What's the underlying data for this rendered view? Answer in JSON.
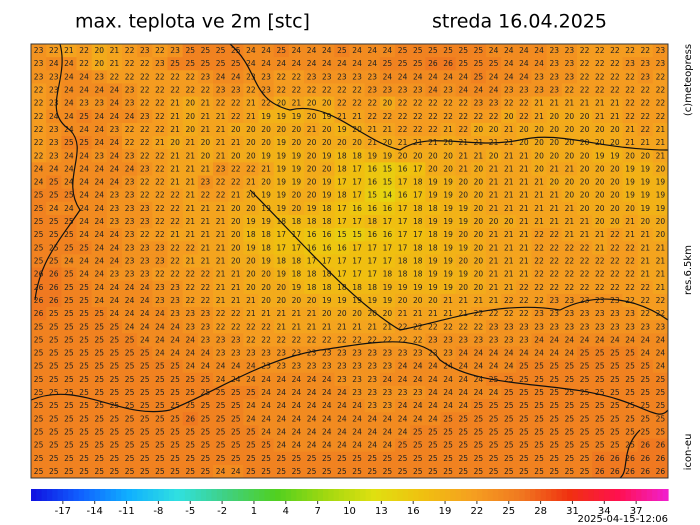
{
  "header": {
    "title": "max. teplota ve 2m [stc]",
    "date": "streda 16.04.2025"
  },
  "credits": {
    "copyright": "(c)meteopress",
    "resolution": "res.6.5km",
    "model": "icon-eu"
  },
  "timestamp": "2025-04-15-12:06",
  "colorbar": {
    "lim": [
      -20,
      40
    ],
    "ticks": [
      -17,
      -14,
      -11,
      -8,
      -5,
      -2,
      1,
      4,
      7,
      10,
      13,
      16,
      19,
      22,
      25,
      28,
      31,
      34,
      37
    ],
    "colors": [
      "#1010e0",
      "#1060ff",
      "#10b0ff",
      "#30e0e0",
      "#40d080",
      "#50d020",
      "#a0d810",
      "#e0e010",
      "#f0c010",
      "#f5a020",
      "#f07820",
      "#f03010",
      "#ff1050",
      "#f020d0"
    ]
  },
  "grid": {
    "rows": [
      [
        23,
        22,
        21,
        22,
        20,
        21,
        22,
        23,
        22,
        23,
        25,
        25,
        25,
        25,
        24,
        24,
        25,
        24,
        24,
        24,
        25,
        24,
        24,
        24,
        25,
        25,
        25,
        25,
        25,
        25,
        24,
        24,
        24,
        24,
        23,
        23,
        22,
        22,
        22,
        22,
        22,
        23
      ],
      [
        23,
        24,
        24,
        22,
        20,
        21,
        22,
        22,
        23,
        25,
        25,
        25,
        25,
        25,
        24,
        24,
        24,
        24,
        24,
        24,
        24,
        24,
        24,
        25,
        25,
        25,
        26,
        26,
        25,
        25,
        25,
        24,
        24,
        24,
        23,
        23,
        22,
        22,
        22,
        23,
        23,
        23
      ],
      [
        23,
        23,
        24,
        24,
        23,
        22,
        22,
        22,
        22,
        22,
        22,
        23,
        24,
        24,
        23,
        23,
        22,
        22,
        23,
        23,
        23,
        23,
        23,
        24,
        24,
        24,
        24,
        24,
        24,
        25,
        24,
        24,
        24,
        23,
        23,
        23,
        22,
        22,
        22,
        22,
        23,
        22
      ],
      [
        22,
        23,
        24,
        24,
        24,
        24,
        23,
        22,
        22,
        22,
        22,
        22,
        23,
        23,
        22,
        23,
        22,
        22,
        22,
        22,
        22,
        22,
        23,
        23,
        23,
        23,
        24,
        23,
        24,
        24,
        24,
        23,
        23,
        23,
        23,
        22,
        22,
        22,
        22,
        22,
        22,
        22
      ],
      [
        22,
        23,
        24,
        23,
        23,
        24,
        23,
        22,
        22,
        21,
        20,
        21,
        22,
        22,
        21,
        22,
        20,
        21,
        20,
        20,
        22,
        22,
        22,
        20,
        22,
        22,
        22,
        22,
        22,
        23,
        23,
        22,
        22,
        21,
        21,
        21,
        21,
        21,
        21,
        22,
        22,
        22
      ],
      [
        22,
        24,
        24,
        25,
        24,
        24,
        24,
        23,
        22,
        21,
        20,
        21,
        21,
        22,
        21,
        19,
        19,
        19,
        20,
        19,
        21,
        21,
        22,
        22,
        22,
        22,
        22,
        22,
        22,
        22,
        22,
        20,
        22,
        21,
        20,
        20,
        20,
        21,
        21,
        22,
        22,
        22
      ],
      [
        22,
        23,
        24,
        24,
        24,
        23,
        22,
        22,
        22,
        21,
        20,
        21,
        21,
        20,
        20,
        20,
        20,
        20,
        21,
        20,
        19,
        20,
        21,
        21,
        22,
        22,
        22,
        21,
        22,
        20,
        20,
        21,
        20,
        20,
        20,
        20,
        20,
        20,
        20,
        21,
        22,
        21
      ],
      [
        22,
        23,
        25,
        25,
        24,
        24,
        22,
        22,
        21,
        20,
        21,
        20,
        21,
        21,
        20,
        20,
        19,
        20,
        20,
        20,
        20,
        20,
        21,
        20,
        21,
        21,
        21,
        20,
        21,
        21,
        21,
        21,
        20,
        20,
        20,
        20,
        20,
        20,
        20,
        21,
        21,
        21
      ],
      [
        22,
        23,
        24,
        24,
        23,
        24,
        23,
        22,
        22,
        21,
        21,
        20,
        21,
        20,
        20,
        19,
        19,
        19,
        20,
        19,
        18,
        18,
        19,
        19,
        20,
        20,
        20,
        20,
        21,
        21,
        20,
        21,
        21,
        20,
        20,
        20,
        20,
        19,
        19,
        20,
        20,
        21
      ],
      [
        24,
        24,
        24,
        24,
        24,
        24,
        24,
        23,
        22,
        21,
        21,
        21,
        23,
        22,
        22,
        21,
        19,
        19,
        20,
        20,
        18,
        17,
        16,
        15,
        16,
        17,
        20,
        20,
        21,
        20,
        21,
        21,
        21,
        20,
        21,
        21,
        20,
        20,
        20,
        19,
        19,
        20
      ],
      [
        24,
        25,
        24,
        24,
        24,
        24,
        23,
        22,
        22,
        21,
        21,
        23,
        22,
        22,
        21,
        20,
        19,
        19,
        20,
        19,
        17,
        17,
        16,
        15,
        17,
        18,
        19,
        19,
        20,
        20,
        21,
        21,
        21,
        21,
        20,
        20,
        20,
        20,
        20,
        19,
        19,
        19
      ],
      [
        25,
        25,
        25,
        24,
        24,
        23,
        23,
        22,
        22,
        22,
        21,
        22,
        22,
        21,
        20,
        19,
        19,
        20,
        20,
        19,
        18,
        17,
        15,
        14,
        16,
        17,
        19,
        19,
        20,
        20,
        21,
        21,
        21,
        21,
        21,
        20,
        20,
        20,
        20,
        19,
        19,
        19
      ],
      [
        25,
        24,
        24,
        24,
        24,
        23,
        23,
        23,
        22,
        22,
        21,
        21,
        21,
        20,
        20,
        19,
        19,
        20,
        19,
        18,
        17,
        16,
        16,
        16,
        17,
        18,
        18,
        19,
        19,
        20,
        21,
        21,
        21,
        21,
        21,
        21,
        20,
        20,
        20,
        20,
        19,
        19
      ],
      [
        25,
        25,
        25,
        24,
        24,
        23,
        23,
        23,
        22,
        22,
        21,
        21,
        21,
        20,
        19,
        19,
        18,
        18,
        18,
        18,
        17,
        17,
        18,
        17,
        17,
        18,
        19,
        19,
        19,
        20,
        20,
        20,
        21,
        21,
        21,
        21,
        21,
        20,
        20,
        21,
        20,
        20
      ],
      [
        25,
        25,
        25,
        24,
        24,
        24,
        23,
        22,
        22,
        21,
        21,
        21,
        21,
        20,
        18,
        18,
        17,
        17,
        16,
        16,
        15,
        15,
        16,
        16,
        17,
        17,
        18,
        19,
        20,
        20,
        21,
        21,
        21,
        22,
        22,
        21,
        21,
        21,
        22,
        21,
        21,
        20
      ],
      [
        25,
        25,
        25,
        25,
        24,
        24,
        23,
        23,
        23,
        22,
        22,
        21,
        21,
        20,
        19,
        18,
        17,
        17,
        16,
        16,
        16,
        17,
        17,
        17,
        17,
        18,
        18,
        19,
        19,
        20,
        21,
        21,
        21,
        22,
        22,
        22,
        22,
        21,
        22,
        22,
        21,
        21
      ],
      [
        25,
        25,
        24,
        24,
        24,
        24,
        23,
        23,
        23,
        22,
        21,
        21,
        21,
        20,
        20,
        19,
        18,
        18,
        17,
        17,
        17,
        17,
        17,
        17,
        18,
        18,
        19,
        19,
        20,
        20,
        21,
        21,
        21,
        22,
        22,
        22,
        22,
        22,
        22,
        22,
        21,
        21
      ],
      [
        26,
        26,
        25,
        24,
        24,
        23,
        23,
        23,
        22,
        22,
        22,
        22,
        21,
        21,
        20,
        20,
        19,
        18,
        18,
        18,
        17,
        17,
        17,
        18,
        18,
        18,
        19,
        19,
        19,
        20,
        21,
        21,
        21,
        22,
        22,
        22,
        22,
        22,
        22,
        22,
        21,
        21
      ],
      [
        26,
        26,
        25,
        25,
        24,
        24,
        24,
        24,
        23,
        23,
        22,
        22,
        21,
        21,
        20,
        20,
        20,
        19,
        18,
        18,
        18,
        18,
        18,
        19,
        19,
        19,
        19,
        19,
        20,
        20,
        21,
        21,
        22,
        22,
        22,
        22,
        22,
        22,
        22,
        22,
        22,
        21
      ],
      [
        26,
        26,
        25,
        25,
        24,
        24,
        24,
        24,
        23,
        23,
        22,
        22,
        21,
        21,
        21,
        20,
        20,
        20,
        20,
        19,
        19,
        19,
        19,
        19,
        20,
        20,
        20,
        21,
        21,
        21,
        21,
        22,
        22,
        22,
        23,
        23,
        23,
        23,
        23,
        22,
        22,
        22
      ],
      [
        26,
        25,
        25,
        25,
        25,
        24,
        24,
        24,
        24,
        23,
        23,
        23,
        22,
        22,
        21,
        21,
        21,
        21,
        21,
        20,
        20,
        20,
        20,
        20,
        21,
        21,
        21,
        21,
        21,
        22,
        22,
        22,
        22,
        23,
        23,
        23,
        23,
        23,
        23,
        23,
        22,
        22
      ],
      [
        25,
        25,
        25,
        25,
        25,
        25,
        24,
        24,
        24,
        24,
        23,
        23,
        22,
        22,
        22,
        22,
        21,
        21,
        21,
        21,
        21,
        21,
        21,
        21,
        22,
        22,
        22,
        22,
        22,
        22,
        23,
        23,
        23,
        23,
        23,
        23,
        23,
        23,
        23,
        23,
        23,
        23
      ],
      [
        25,
        25,
        25,
        25,
        25,
        25,
        25,
        24,
        24,
        24,
        24,
        23,
        23,
        23,
        22,
        22,
        22,
        22,
        22,
        22,
        22,
        22,
        22,
        22,
        22,
        22,
        23,
        23,
        23,
        23,
        23,
        23,
        23,
        24,
        24,
        24,
        24,
        24,
        24,
        24,
        24,
        24
      ],
      [
        25,
        25,
        25,
        25,
        25,
        25,
        25,
        25,
        24,
        24,
        24,
        24,
        23,
        23,
        23,
        23,
        23,
        23,
        23,
        23,
        23,
        23,
        23,
        23,
        23,
        23,
        23,
        23,
        24,
        24,
        24,
        24,
        24,
        24,
        24,
        24,
        25,
        25,
        25,
        25,
        24,
        24
      ],
      [
        25,
        25,
        25,
        25,
        25,
        25,
        25,
        25,
        25,
        25,
        24,
        24,
        24,
        24,
        24,
        23,
        23,
        23,
        23,
        23,
        23,
        23,
        23,
        23,
        24,
        24,
        24,
        24,
        24,
        24,
        24,
        24,
        25,
        25,
        25,
        25,
        25,
        25,
        25,
        25,
        25,
        24
      ],
      [
        25,
        25,
        25,
        25,
        25,
        25,
        25,
        25,
        25,
        25,
        25,
        25,
        24,
        24,
        24,
        24,
        24,
        24,
        24,
        24,
        23,
        23,
        23,
        24,
        24,
        24,
        24,
        24,
        24,
        24,
        25,
        25,
        25,
        25,
        25,
        25,
        25,
        25,
        25,
        25,
        25,
        25
      ],
      [
        25,
        25,
        25,
        25,
        25,
        25,
        25,
        25,
        25,
        25,
        25,
        25,
        25,
        25,
        25,
        24,
        24,
        24,
        24,
        24,
        24,
        23,
        23,
        23,
        23,
        23,
        24,
        24,
        24,
        24,
        24,
        25,
        25,
        25,
        25,
        25,
        25,
        25,
        25,
        25,
        25,
        25
      ],
      [
        25,
        25,
        25,
        25,
        25,
        25,
        25,
        25,
        25,
        25,
        25,
        25,
        25,
        25,
        24,
        24,
        24,
        24,
        24,
        24,
        24,
        24,
        23,
        23,
        24,
        24,
        24,
        24,
        24,
        25,
        25,
        25,
        25,
        25,
        25,
        25,
        25,
        25,
        25,
        25,
        25,
        25
      ],
      [
        25,
        25,
        25,
        25,
        25,
        25,
        25,
        25,
        25,
        25,
        26,
        25,
        25,
        25,
        24,
        24,
        24,
        24,
        24,
        24,
        24,
        24,
        24,
        24,
        24,
        24,
        24,
        25,
        25,
        25,
        25,
        25,
        25,
        25,
        25,
        25,
        25,
        25,
        25,
        25,
        25,
        25
      ],
      [
        25,
        25,
        25,
        25,
        25,
        25,
        25,
        25,
        25,
        25,
        25,
        25,
        25,
        25,
        25,
        24,
        24,
        24,
        24,
        24,
        24,
        24,
        24,
        24,
        24,
        25,
        25,
        25,
        25,
        25,
        25,
        25,
        25,
        25,
        25,
        25,
        25,
        25,
        25,
        25,
        25,
        25
      ],
      [
        25,
        25,
        25,
        25,
        25,
        25,
        25,
        25,
        25,
        25,
        25,
        25,
        25,
        25,
        25,
        25,
        24,
        24,
        24,
        24,
        24,
        24,
        24,
        24,
        25,
        25,
        25,
        25,
        25,
        25,
        25,
        25,
        25,
        25,
        25,
        25,
        25,
        25,
        25,
        25,
        26,
        26
      ],
      [
        25,
        25,
        25,
        25,
        25,
        25,
        25,
        25,
        25,
        25,
        25,
        25,
        25,
        25,
        25,
        25,
        25,
        25,
        25,
        25,
        25,
        25,
        25,
        25,
        25,
        25,
        25,
        25,
        25,
        25,
        25,
        25,
        25,
        25,
        25,
        25,
        25,
        26,
        26,
        26,
        26,
        26
      ],
      [
        25,
        25,
        25,
        25,
        25,
        25,
        25,
        25,
        25,
        25,
        25,
        25,
        24,
        24,
        25,
        25,
        25,
        25,
        25,
        25,
        25,
        25,
        25,
        25,
        25,
        25,
        25,
        25,
        25,
        25,
        25,
        25,
        25,
        25,
        25,
        25,
        25,
        26,
        26,
        26,
        26,
        26
      ]
    ]
  }
}
